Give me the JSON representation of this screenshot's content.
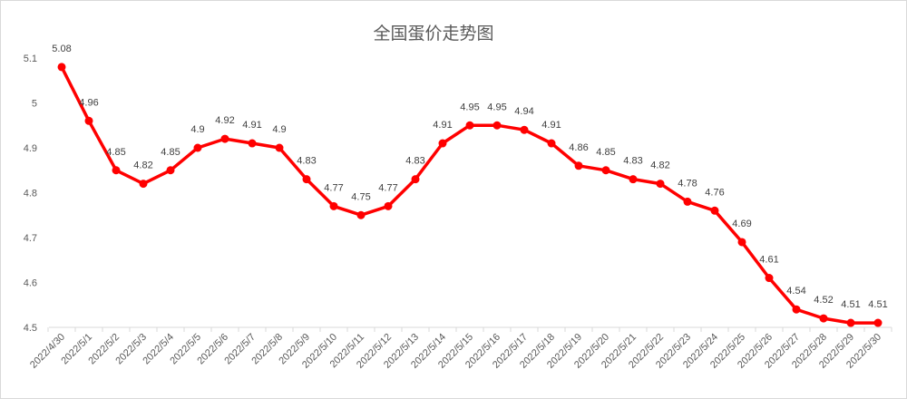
{
  "chart_data": {
    "type": "line",
    "title": "全国蛋价走势图",
    "xlabel": "",
    "ylabel": "",
    "ylim": [
      4.5,
      5.1
    ],
    "yticks": [
      "4.5",
      "4.6",
      "4.7",
      "4.8",
      "4.9",
      "5",
      "5.1"
    ],
    "grid": false,
    "legend": "none",
    "color": "#ff0000",
    "categories": [
      "2022/4/30",
      "2022/5/1",
      "2022/5/2",
      "2022/5/3",
      "2022/5/4",
      "2022/5/5",
      "2022/5/6",
      "2022/5/7",
      "2022/5/8",
      "2022/5/9",
      "2022/5/10",
      "2022/5/11",
      "2022/5/12",
      "2022/5/13",
      "2022/5/14",
      "2022/5/15",
      "2022/5/16",
      "2022/5/17",
      "2022/5/18",
      "2022/5/19",
      "2022/5/20",
      "2022/5/21",
      "2022/5/22",
      "2022/5/23",
      "2022/5/24",
      "2022/5/25",
      "2022/5/26",
      "2022/5/27",
      "2022/5/28",
      "2022/5/29",
      "2022/5/30"
    ],
    "values": [
      5.08,
      4.96,
      4.85,
      4.82,
      4.85,
      4.9,
      4.92,
      4.91,
      4.9,
      4.83,
      4.77,
      4.75,
      4.77,
      4.83,
      4.91,
      4.95,
      4.95,
      4.94,
      4.91,
      4.86,
      4.85,
      4.83,
      4.82,
      4.78,
      4.76,
      4.69,
      4.61,
      4.54,
      4.52,
      4.51,
      4.51
    ]
  }
}
